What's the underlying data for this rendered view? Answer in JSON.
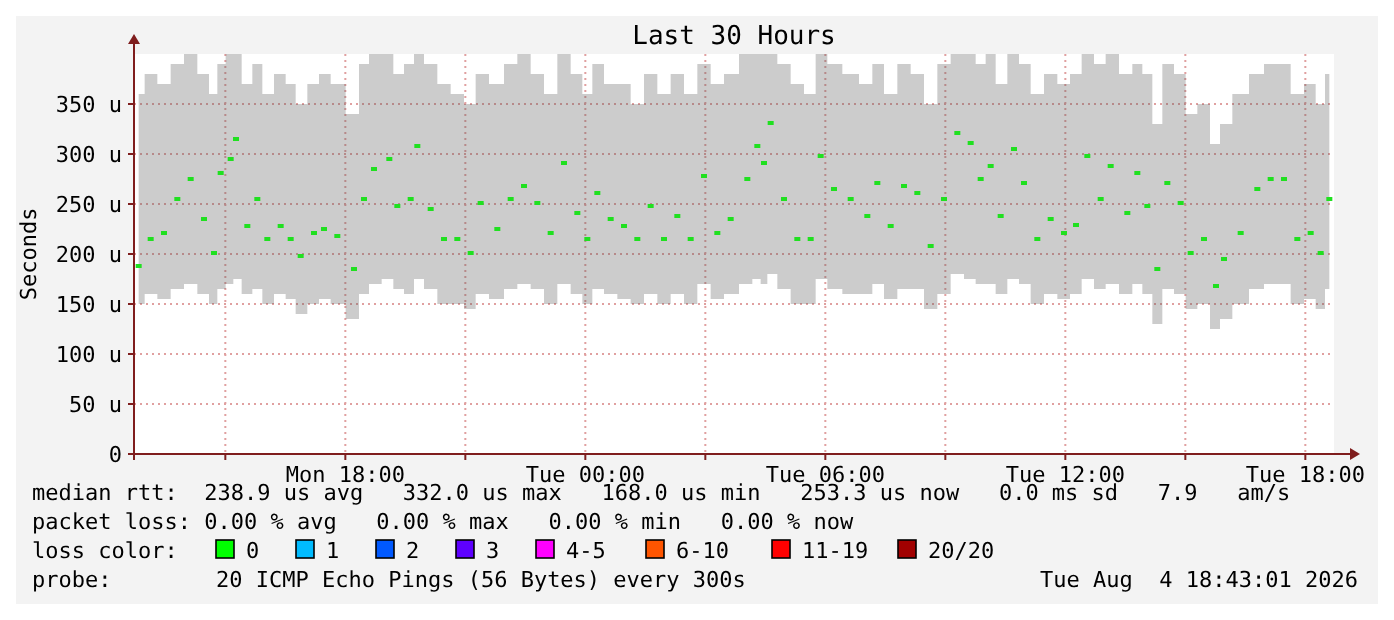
{
  "chart_data": {
    "type": "scatter",
    "title": "Last 30 Hours",
    "ylabel": "Seconds",
    "xlim": [
      "2026-08-03T12:43",
      "2026-08-04T18:43"
    ],
    "xticks": [
      {
        "value": "2026-08-03T15:00",
        "label": null
      },
      {
        "value": "2026-08-03T18:00",
        "label": "Mon 18:00"
      },
      {
        "value": "2026-08-03T21:00",
        "label": null
      },
      {
        "value": "2026-08-04T00:00",
        "label": "Tue 00:00"
      },
      {
        "value": "2026-08-04T03:00",
        "label": null
      },
      {
        "value": "2026-08-04T06:00",
        "label": "Tue 06:00"
      },
      {
        "value": "2026-08-04T09:00",
        "label": null
      },
      {
        "value": "2026-08-04T12:00",
        "label": "Tue 12:00"
      },
      {
        "value": "2026-08-04T15:00",
        "label": null
      },
      {
        "value": "2026-08-04T18:00",
        "label": "Tue 18:00"
      }
    ],
    "ylim": [
      0,
      400
    ],
    "yticks": [
      0,
      {
        "value": 50,
        "label": "50 u"
      },
      {
        "value": 100,
        "label": "100 u"
      },
      {
        "value": 150,
        "label": "150 u"
      },
      {
        "value": 200,
        "label": "200 u"
      },
      {
        "value": 250,
        "label": "250 u"
      },
      {
        "value": 300,
        "label": "300 u"
      },
      {
        "value": 350,
        "label": "350 u"
      }
    ],
    "grid": true,
    "marker": "square",
    "series": [
      {
        "color": "#20e020",
        "x": [
          "2026-08-03T12:50",
          "2026-08-03T13:08",
          "2026-08-03T13:28",
          "2026-08-03T13:48",
          "2026-08-03T14:08",
          "2026-08-03T14:28",
          "2026-08-03T14:43",
          "2026-08-03T14:53",
          "2026-08-03T15:08",
          "2026-08-03T15:16",
          "2026-08-03T15:33",
          "2026-08-03T15:48",
          "2026-08-03T16:03",
          "2026-08-03T16:23",
          "2026-08-03T16:38",
          "2026-08-03T16:53",
          "2026-08-03T17:13",
          "2026-08-03T17:28",
          "2026-08-03T17:48",
          "2026-08-03T18:13",
          "2026-08-03T18:28",
          "2026-08-03T18:43",
          "2026-08-03T19:06",
          "2026-08-03T19:18",
          "2026-08-03T19:38",
          "2026-08-03T19:48",
          "2026-08-03T20:08",
          "2026-08-03T20:28",
          "2026-08-03T20:48",
          "2026-08-03T21:08",
          "2026-08-03T21:23",
          "2026-08-03T21:48",
          "2026-08-03T22:08",
          "2026-08-03T22:28",
          "2026-08-03T22:48",
          "2026-08-03T23:08",
          "2026-08-03T23:28",
          "2026-08-03T23:48",
          "2026-08-04T00:03",
          "2026-08-04T00:18",
          "2026-08-04T00:38",
          "2026-08-04T00:58",
          "2026-08-04T01:18",
          "2026-08-04T01:38",
          "2026-08-04T01:58",
          "2026-08-04T02:18",
          "2026-08-04T02:38",
          "2026-08-04T02:58",
          "2026-08-04T03:18",
          "2026-08-04T03:38",
          "2026-08-04T04:03",
          "2026-08-04T04:18",
          "2026-08-04T04:28",
          "2026-08-04T04:38",
          "2026-08-04T04:58",
          "2026-08-04T05:18",
          "2026-08-04T05:38",
          "2026-08-04T05:53",
          "2026-08-04T06:13",
          "2026-08-04T06:38",
          "2026-08-04T07:03",
          "2026-08-04T07:18",
          "2026-08-04T07:38",
          "2026-08-04T07:58",
          "2026-08-04T08:18",
          "2026-08-04T08:38",
          "2026-08-04T08:58",
          "2026-08-04T09:18",
          "2026-08-04T09:38",
          "2026-08-04T09:53",
          "2026-08-04T10:08",
          "2026-08-04T10:23",
          "2026-08-04T10:43",
          "2026-08-04T10:58",
          "2026-08-04T11:18",
          "2026-08-04T11:38",
          "2026-08-04T11:58",
          "2026-08-04T12:16",
          "2026-08-04T12:33",
          "2026-08-04T12:53",
          "2026-08-04T13:08",
          "2026-08-04T13:33",
          "2026-08-04T13:48",
          "2026-08-04T14:03",
          "2026-08-04T14:18",
          "2026-08-04T14:33",
          "2026-08-04T14:53",
          "2026-08-04T15:08",
          "2026-08-04T15:28",
          "2026-08-04T15:46",
          "2026-08-04T15:58",
          "2026-08-04T16:23",
          "2026-08-04T16:48",
          "2026-08-04T17:08",
          "2026-08-04T17:28",
          "2026-08-04T17:48",
          "2026-08-04T18:08",
          "2026-08-04T18:23",
          "2026-08-04T18:36"
        ],
        "values": [
          188,
          215,
          221,
          255,
          275,
          235,
          201,
          281,
          295,
          315,
          228,
          255,
          215,
          228,
          215,
          198,
          221,
          225,
          218,
          185,
          255,
          285,
          295,
          248,
          255,
          308,
          245,
          215,
          215,
          201,
          251,
          225,
          255,
          268,
          251,
          221,
          291,
          241,
          215,
          261,
          235,
          228,
          215,
          248,
          215,
          238,
          215,
          278,
          221,
          235,
          275,
          308,
          291,
          331,
          255,
          215,
          215,
          298,
          265,
          255,
          238,
          271,
          228,
          268,
          261,
          208,
          255,
          321,
          311,
          275,
          288,
          238,
          305,
          271,
          215,
          235,
          221,
          229,
          298,
          255,
          288,
          241,
          281,
          248,
          185,
          271,
          251,
          201,
          215,
          168,
          195,
          221,
          265,
          275,
          275,
          215,
          221,
          201,
          255
        ],
        "lower": [
          150,
          160,
          155,
          165,
          170,
          160,
          150,
          165,
          170,
          175,
          160,
          165,
          150,
          160,
          155,
          140,
          150,
          155,
          150,
          135,
          160,
          170,
          175,
          165,
          160,
          175,
          165,
          150,
          150,
          145,
          160,
          155,
          165,
          170,
          165,
          150,
          170,
          160,
          150,
          165,
          160,
          155,
          150,
          160,
          150,
          160,
          150,
          170,
          155,
          160,
          170,
          175,
          170,
          180,
          165,
          150,
          150,
          175,
          165,
          160,
          160,
          170,
          155,
          165,
          165,
          145,
          160,
          180,
          175,
          170,
          170,
          160,
          175,
          170,
          150,
          160,
          155,
          160,
          175,
          165,
          170,
          160,
          170,
          160,
          130,
          165,
          160,
          145,
          150,
          125,
          135,
          150,
          165,
          170,
          170,
          150,
          155,
          145,
          165
        ],
        "upper": [
          360,
          380,
          370,
          390,
          400,
          380,
          360,
          390,
          400,
          400,
          370,
          390,
          360,
          380,
          370,
          350,
          370,
          380,
          370,
          340,
          390,
          400,
          400,
          380,
          390,
          400,
          390,
          370,
          360,
          350,
          380,
          370,
          390,
          400,
          380,
          360,
          400,
          380,
          360,
          390,
          370,
          370,
          350,
          380,
          360,
          380,
          360,
          390,
          370,
          380,
          400,
          400,
          400,
          400,
          390,
          370,
          360,
          400,
          390,
          380,
          370,
          390,
          360,
          390,
          380,
          350,
          390,
          400,
          400,
          390,
          400,
          370,
          400,
          390,
          360,
          380,
          370,
          380,
          400,
          390,
          400,
          380,
          390,
          380,
          330,
          390,
          380,
          340,
          350,
          310,
          330,
          360,
          380,
          390,
          390,
          360,
          370,
          350,
          380
        ]
      }
    ],
    "annotations": [
      "median rtt:  238.9 us avg   332.0 us max   168.0 us min   253.3 us now   0.0 ms sd   7.9   am/s",
      "packet loss: 0.00 % avg   0.00 % max   0.00 % min   0.00 % now",
      "loss color:",
      "0",
      "1",
      "2",
      "3",
      "4-5",
      "6-10",
      "11-19",
      "20/20",
      "probe:",
      "20 ICMP Echo Pings (56 Bytes) every 300s",
      "Tue Aug  4 18:43:01 2026"
    ]
  }
}
